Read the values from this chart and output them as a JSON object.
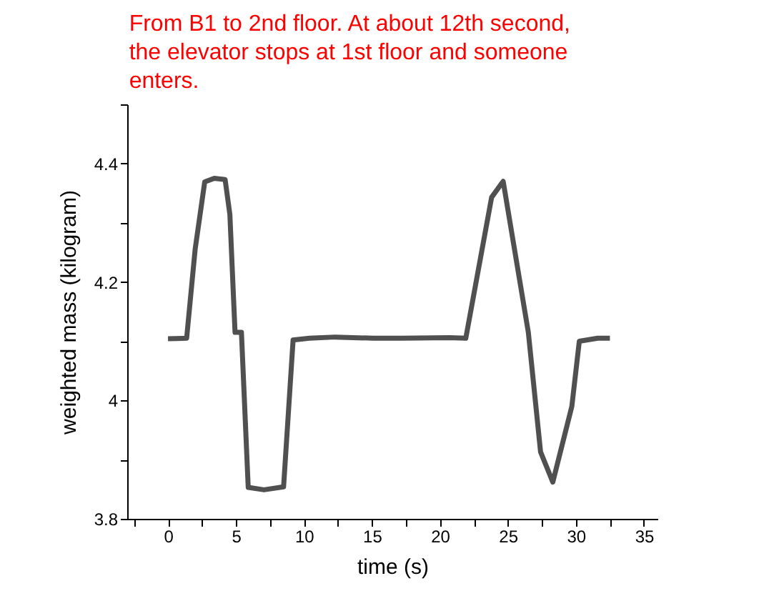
{
  "chart_data": {
    "type": "line",
    "title": "From B1 to 2nd floor.  At about 12th second, the elevator stops at 1st floor and someone enters.",
    "xlabel": "time (s)",
    "ylabel": "weighted mass (kilogram)",
    "x": [
      0,
      1.37,
      2.0,
      2.7,
      3.4,
      4.2,
      4.55,
      4.93,
      5.4,
      5.9,
      7.06,
      8.5,
      9.2,
      10.4,
      12.3,
      15.1,
      17.2,
      20.7,
      21.9,
      23.8,
      24.65,
      26.5,
      27.4,
      28.3,
      29.7,
      30.25,
      31.6,
      32.5
    ],
    "series": [
      {
        "color": "#505050",
        "values": [
          4.104,
          4.105,
          4.256,
          4.369,
          4.375,
          4.373,
          4.314,
          4.115,
          4.115,
          3.853,
          3.849,
          3.854,
          4.102,
          4.105,
          4.107,
          4.105,
          4.105,
          4.106,
          4.105,
          4.343,
          4.37,
          4.115,
          3.913,
          3.862,
          3.99,
          4.1,
          4.105,
          4.105
        ]
      }
    ],
    "xlim": [
      -3,
      36
    ],
    "ylim": [
      3.8,
      4.5
    ],
    "xticks": [
      {
        "value": -2.5,
        "label": null
      },
      0,
      {
        "value": 2.5,
        "label": null
      },
      5,
      {
        "value": 7.5,
        "label": null
      },
      10,
      {
        "value": 12.5,
        "label": null
      },
      15,
      {
        "value": 17.5,
        "label": null
      },
      20,
      {
        "value": 22.5,
        "label": null
      },
      25,
      {
        "value": 27.5,
        "label": null
      },
      30,
      {
        "value": 32.5,
        "label": null
      },
      35
    ],
    "yticks": [
      {
        "value": 3.8,
        "label": "3.8"
      },
      {
        "value": 3.9,
        "label": null
      },
      {
        "value": 4.0,
        "label": "4"
      },
      {
        "value": 4.1,
        "label": null
      },
      {
        "value": 4.2,
        "label": "4.2"
      },
      {
        "value": 4.3,
        "label": null
      },
      {
        "value": 4.4,
        "label": "4.4"
      },
      {
        "value": 4.5,
        "label": null
      }
    ],
    "grid": false,
    "marker": "none",
    "line_style": "solid"
  }
}
